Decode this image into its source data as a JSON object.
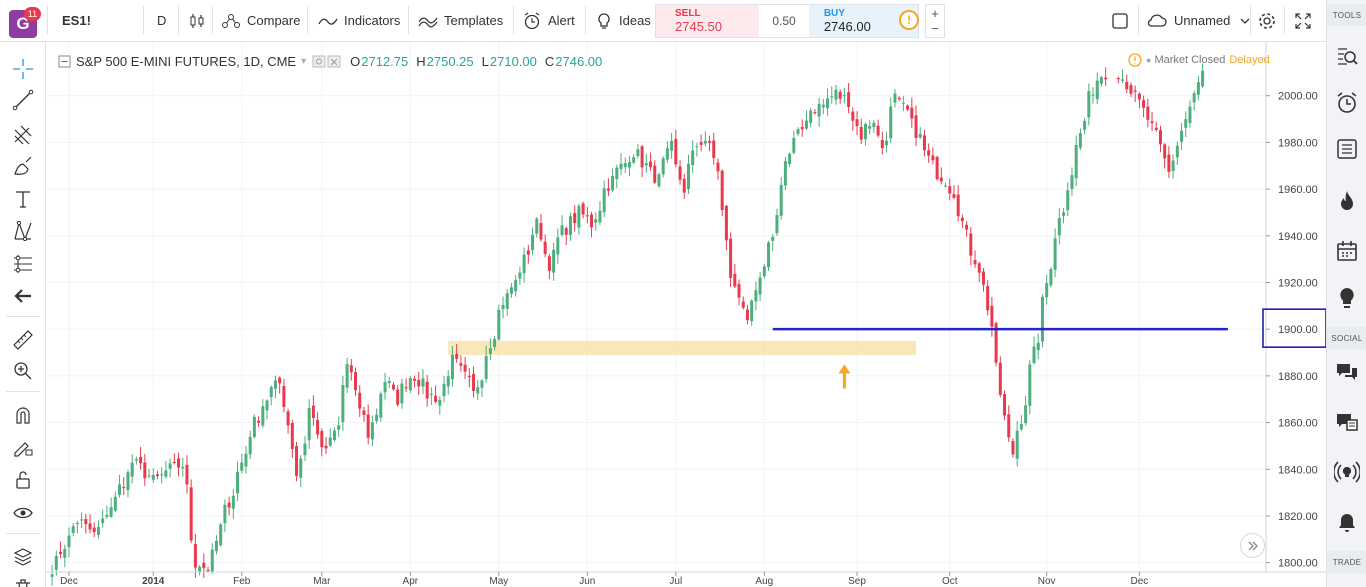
{
  "toolbar": {
    "app_badge_count": "11",
    "symbol": "ES1!",
    "interval": "D",
    "compare_label": "Compare",
    "indicators_label": "Indicators",
    "templates_label": "Templates",
    "alert_label": "Alert",
    "ideas_label": "Ideas",
    "sell_label": "SELL",
    "sell_price_main": "2745",
    "sell_price_tail": ".50",
    "spread": "0.50",
    "buy_label": "BUY",
    "buy_price": "2746.00",
    "layout_name": "Unnamed",
    "zoom_plus": "+",
    "zoom_minus": "−",
    "alert_mark": "!"
  },
  "legend": {
    "title": "S&P 500 E-MINI FUTURES, 1D, CME",
    "open_key": "O",
    "open": "2712.75",
    "high_key": "H",
    "high": "2750.25",
    "low_key": "L",
    "low": "2710.00",
    "close_key": "C",
    "close": "2746.00"
  },
  "status": {
    "market": "Market Closed",
    "delayed": "Delayed"
  },
  "right_panel": {
    "tools_header": "TOOLS",
    "social_header": "SOCIAL",
    "trade_header": "TRADE"
  },
  "colors": {
    "up": "#26a69a",
    "down": "#ef5350",
    "up_candle": "#4caf7d",
    "down_candle": "#e8394d",
    "zone": "#f7dfa0",
    "hline": "#2424c8",
    "arrow": "#f5a623",
    "badge": "#8e3ca2"
  },
  "chart_data": {
    "type": "candlestick",
    "y_ticks": [
      2000,
      1980,
      1960,
      1940,
      1920,
      1900,
      1880,
      1860,
      1840,
      1820,
      1800
    ],
    "y_tick_labels": [
      "2000.00",
      "1980.00",
      "1960.00",
      "1940.00",
      "1920.00",
      "1900.00",
      "1880.00",
      "1860.00",
      "1840.00",
      "1820.00",
      "1800.00"
    ],
    "ylim": [
      1796,
      2023
    ],
    "x_ticks": [
      "Dec",
      "2014",
      "Feb",
      "Mar",
      "Apr",
      "May",
      "Jun",
      "Jul",
      "Aug",
      "Sep",
      "Oct",
      "Nov",
      "Dec"
    ],
    "highlighted_price": "1900.00",
    "support_zone": {
      "low": 1889,
      "high": 1895
    },
    "horizontal_line": 1900,
    "waypoints": [
      [
        0,
        1798
      ],
      [
        3,
        1805
      ],
      [
        8,
        1818
      ],
      [
        14,
        1812
      ],
      [
        20,
        1827
      ],
      [
        26,
        1843
      ],
      [
        33,
        1835
      ],
      [
        38,
        1840
      ],
      [
        42,
        1842
      ],
      [
        46,
        1800
      ],
      [
        51,
        1797
      ],
      [
        54,
        1815
      ],
      [
        58,
        1830
      ],
      [
        65,
        1860
      ],
      [
        70,
        1873
      ],
      [
        74,
        1878
      ],
      [
        77,
        1850
      ],
      [
        79,
        1838
      ],
      [
        83,
        1866
      ],
      [
        87,
        1847
      ],
      [
        92,
        1858
      ],
      [
        95,
        1885
      ],
      [
        100,
        1862
      ],
      [
        102,
        1855
      ],
      [
        107,
        1878
      ],
      [
        111,
        1870
      ],
      [
        116,
        1882
      ],
      [
        121,
        1872
      ],
      [
        125,
        1870
      ],
      [
        128,
        1888
      ],
      [
        132,
        1882
      ],
      [
        136,
        1872
      ],
      [
        140,
        1890
      ],
      [
        145,
        1912
      ],
      [
        150,
        1922
      ],
      [
        156,
        1945
      ],
      [
        160,
        1928
      ],
      [
        164,
        1942
      ],
      [
        170,
        1950
      ],
      [
        174,
        1945
      ],
      [
        178,
        1960
      ],
      [
        182,
        1968
      ],
      [
        187,
        1976
      ],
      [
        191,
        1970
      ],
      [
        195,
        1964
      ],
      [
        199,
        1978
      ],
      [
        203,
        1960
      ],
      [
        207,
        1979
      ],
      [
        211,
        1982
      ],
      [
        215,
        1964
      ],
      [
        218,
        1923
      ],
      [
        221,
        1914
      ],
      [
        224,
        1905
      ],
      [
        227,
        1918
      ],
      [
        230,
        1928
      ],
      [
        233,
        1948
      ],
      [
        236,
        1972
      ],
      [
        240,
        1983
      ],
      [
        244,
        1994
      ],
      [
        248,
        1996
      ],
      [
        252,
        2001
      ],
      [
        256,
        1998
      ],
      [
        260,
        1983
      ],
      [
        264,
        1990
      ],
      [
        267,
        1978
      ],
      [
        271,
        1999
      ],
      [
        275,
        1993
      ],
      [
        279,
        1982
      ],
      [
        283,
        1970
      ],
      [
        287,
        1964
      ],
      [
        291,
        1957
      ],
      [
        294,
        1940
      ],
      [
        297,
        1930
      ],
      [
        300,
        1918
      ],
      [
        303,
        1893
      ],
      [
        306,
        1862
      ],
      [
        309,
        1847
      ],
      [
        312,
        1862
      ],
      [
        315,
        1883
      ],
      [
        318,
        1903
      ],
      [
        321,
        1928
      ],
      [
        324,
        1947
      ],
      [
        327,
        1962
      ],
      [
        330,
        1978
      ],
      [
        333,
        1995
      ],
      [
        336,
        2007
      ],
      [
        339,
        2010
      ]
    ],
    "tail": [
      [
        0,
        2010
      ],
      [
        5,
        1997
      ],
      [
        9,
        1983
      ],
      [
        12,
        1967
      ],
      [
        15,
        1985
      ],
      [
        18,
        2000
      ],
      [
        20,
        2010
      ]
    ]
  }
}
